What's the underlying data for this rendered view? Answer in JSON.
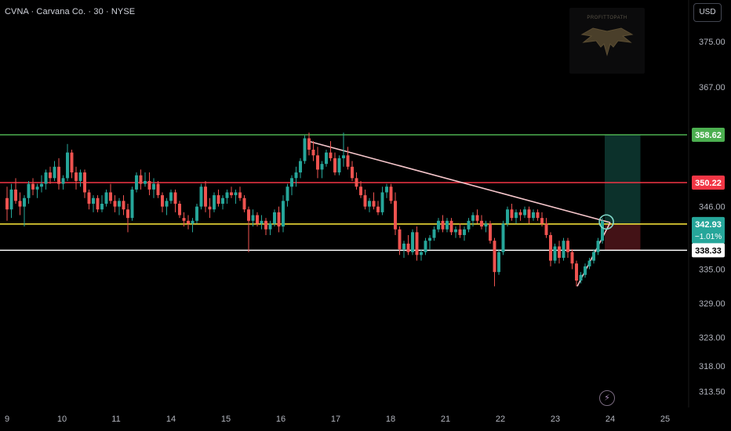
{
  "header": {
    "title": "CVNA · Carvana Co. · 30 · NYSE"
  },
  "currency_button": {
    "label": "USD"
  },
  "logo": {
    "text": "PROFITTOPATH"
  },
  "flash_icon": {
    "glyph": "⚡"
  },
  "colors": {
    "background": "#000000",
    "up": "#26a69a",
    "down": "#ef5350",
    "green_line": "#4caf50",
    "red_line": "#f23645",
    "yellow_line": "#ffeb3b",
    "white_line": "#ffffff",
    "trendline": "#f5c6cb"
  },
  "chart_data": {
    "type": "candlestick",
    "symbol": "CVNA",
    "interval": "30",
    "exchange": "NYSE",
    "y_axis": {
      "ticks": [
        "375.00",
        "367.00",
        "346.00",
        "335.00",
        "329.00",
        "323.00",
        "318.00",
        "313.50"
      ],
      "range": [
        310,
        379
      ]
    },
    "x_axis": {
      "ticks": [
        "9",
        "10",
        "11",
        "14",
        "15",
        "16",
        "17",
        "18",
        "21",
        "22",
        "23",
        "24",
        "25"
      ]
    },
    "horizontal_levels": [
      {
        "value": 358.62,
        "label": "358.62",
        "color": "#4caf50"
      },
      {
        "value": 350.22,
        "label": "350.22",
        "color": "#f23645"
      },
      {
        "value": 342.93,
        "label": "342.93",
        "sublabel": "−1.01%",
        "color": "#ffeb3b"
      },
      {
        "value": 338.33,
        "label": "338.33",
        "color": "#ffffff"
      }
    ],
    "trendlines": [
      {
        "from": [
          16.5,
          357.5
        ],
        "to": [
          24.0,
          343.2
        ]
      },
      {
        "from": [
          23.4,
          332.0
        ],
        "to": [
          24.0,
          343.2
        ]
      }
    ],
    "position_tool": {
      "entry": 342.93,
      "target": 358.62,
      "stop": 338.33,
      "x_start": 23.9,
      "x_end": 24.55
    },
    "highlight_circle": {
      "x": 23.93,
      "y": 343.3
    },
    "candles": [
      [
        347.5,
        349.5,
        343.5,
        345.5
      ],
      [
        345.5,
        350.0,
        344.0,
        349.0
      ],
      [
        349.0,
        351.0,
        346.5,
        347.0
      ],
      [
        347.0,
        348.5,
        344.5,
        346.0
      ],
      [
        346.0,
        348.0,
        342.5,
        347.5
      ],
      [
        347.5,
        350.5,
        346.5,
        350.0
      ],
      [
        350.0,
        351.0,
        348.0,
        349.0
      ],
      [
        349.0,
        350.0,
        347.5,
        349.5
      ],
      [
        349.5,
        351.5,
        348.5,
        350.0
      ],
      [
        350.0,
        352.5,
        349.0,
        352.0
      ],
      [
        352.0,
        353.0,
        350.0,
        351.0
      ],
      [
        351.0,
        354.0,
        350.5,
        353.0
      ],
      [
        353.0,
        354.5,
        349.0,
        350.0
      ],
      [
        350.0,
        351.5,
        349.0,
        351.0
      ],
      [
        351.0,
        357.0,
        350.5,
        355.5
      ],
      [
        355.5,
        356.0,
        351.0,
        352.0
      ],
      [
        352.0,
        353.0,
        349.0,
        350.5
      ],
      [
        350.5,
        352.5,
        349.5,
        352.0
      ],
      [
        352.0,
        352.5,
        347.5,
        348.5
      ],
      [
        348.5,
        349.0,
        345.5,
        346.5
      ],
      [
        346.5,
        348.0,
        345.0,
        347.5
      ],
      [
        347.5,
        348.0,
        345.0,
        345.5
      ],
      [
        345.5,
        348.0,
        345.0,
        346.5
      ],
      [
        346.5,
        349.0,
        346.0,
        348.5
      ],
      [
        348.5,
        350.0,
        346.5,
        347.0
      ],
      [
        347.0,
        348.0,
        345.0,
        346.0
      ],
      [
        346.0,
        347.5,
        344.5,
        347.0
      ],
      [
        347.0,
        348.0,
        344.5,
        345.5
      ],
      [
        345.5,
        346.5,
        341.5,
        344.0
      ],
      [
        344.0,
        349.5,
        343.5,
        349.0
      ],
      [
        349.0,
        352.0,
        348.5,
        351.5
      ],
      [
        351.5,
        352.5,
        349.0,
        350.0
      ],
      [
        350.0,
        352.0,
        349.5,
        350.5
      ],
      [
        350.5,
        352.0,
        348.0,
        349.0
      ],
      [
        349.0,
        351.0,
        347.5,
        350.0
      ],
      [
        350.0,
        350.5,
        347.5,
        348.0
      ],
      [
        348.0,
        348.5,
        345.0,
        346.0
      ],
      [
        346.0,
        347.5,
        344.5,
        347.0
      ],
      [
        347.0,
        349.0,
        346.5,
        348.5
      ],
      [
        348.5,
        349.0,
        345.0,
        346.5
      ],
      [
        346.5,
        347.0,
        344.0,
        344.5
      ],
      [
        344.0,
        345.0,
        342.5,
        343.5
      ],
      [
        343.5,
        344.5,
        342.0,
        343.0
      ],
      [
        343.0,
        344.0,
        341.5,
        343.5
      ],
      [
        343.5,
        346.5,
        343.0,
        346.0
      ],
      [
        346.0,
        350.0,
        345.5,
        349.5
      ],
      [
        349.5,
        350.5,
        345.0,
        346.0
      ],
      [
        346.0,
        347.5,
        344.0,
        345.5
      ],
      [
        345.5,
        348.5,
        345.0,
        348.0
      ],
      [
        348.0,
        349.0,
        346.0,
        346.5
      ],
      [
        346.5,
        348.0,
        345.5,
        347.5
      ],
      [
        347.5,
        349.0,
        346.5,
        348.5
      ],
      [
        348.5,
        349.5,
        347.5,
        348.0
      ],
      [
        348.0,
        349.0,
        346.5,
        348.5
      ],
      [
        348.5,
        349.5,
        347.0,
        347.5
      ],
      [
        347.5,
        348.0,
        345.0,
        345.5
      ],
      [
        345.5,
        346.0,
        338.0,
        343.5
      ],
      [
        343.5,
        345.5,
        342.5,
        344.5
      ],
      [
        344.5,
        345.0,
        342.5,
        343.0
      ],
      [
        343.0,
        344.5,
        342.0,
        343.5
      ],
      [
        343.5,
        344.0,
        341.0,
        342.0
      ],
      [
        342.0,
        343.5,
        341.0,
        343.0
      ],
      [
        343.0,
        345.5,
        342.5,
        345.0
      ],
      [
        345.0,
        346.0,
        341.5,
        342.5
      ],
      [
        342.5,
        348.0,
        341.5,
        347.0
      ],
      [
        347.0,
        350.0,
        346.0,
        349.5
      ],
      [
        349.5,
        351.5,
        348.0,
        351.0
      ],
      [
        351.0,
        353.0,
        349.5,
        352.0
      ],
      [
        352.0,
        354.5,
        351.0,
        354.0
      ],
      [
        354.0,
        358.5,
        353.5,
        358.0
      ],
      [
        358.0,
        359.0,
        355.0,
        356.0
      ],
      [
        356.0,
        357.5,
        354.0,
        355.0
      ],
      [
        355.0,
        356.5,
        351.0,
        352.5
      ],
      [
        352.5,
        354.0,
        351.0,
        353.5
      ],
      [
        353.5,
        356.0,
        353.0,
        355.5
      ],
      [
        355.5,
        357.5,
        354.0,
        354.5
      ],
      [
        354.5,
        355.5,
        351.5,
        352.0
      ],
      [
        352.0,
        355.0,
        351.5,
        354.5
      ],
      [
        354.5,
        359.0,
        353.0,
        355.0
      ],
      [
        355.0,
        356.5,
        352.5,
        353.0
      ],
      [
        353.0,
        354.0,
        350.5,
        351.0
      ],
      [
        351.0,
        352.0,
        349.0,
        349.5
      ],
      [
        349.5,
        350.5,
        347.5,
        348.0
      ],
      [
        348.0,
        349.0,
        345.5,
        346.0
      ],
      [
        346.0,
        347.5,
        345.0,
        347.0
      ],
      [
        347.0,
        348.5,
        345.5,
        346.0
      ],
      [
        346.0,
        347.0,
        344.5,
        345.0
      ],
      [
        345.0,
        349.5,
        344.5,
        348.5
      ],
      [
        348.5,
        350.0,
        347.5,
        349.5
      ],
      [
        349.5,
        350.0,
        346.5,
        347.0
      ],
      [
        347.0,
        348.5,
        341.0,
        342.0
      ],
      [
        342.0,
        342.5,
        337.5,
        338.5
      ],
      [
        338.5,
        340.0,
        337.0,
        339.5
      ],
      [
        339.5,
        341.0,
        337.5,
        338.0
      ],
      [
        338.0,
        342.0,
        337.5,
        341.5
      ],
      [
        341.5,
        342.5,
        336.5,
        337.5
      ],
      [
        337.5,
        338.5,
        336.5,
        338.0
      ],
      [
        338.0,
        340.5,
        337.5,
        340.0
      ],
      [
        340.0,
        341.0,
        338.5,
        340.5
      ],
      [
        340.5,
        342.5,
        340.0,
        342.0
      ],
      [
        342.0,
        344.0,
        341.5,
        343.5
      ],
      [
        343.5,
        344.5,
        341.5,
        342.0
      ],
      [
        342.0,
        344.0,
        341.5,
        343.5
      ],
      [
        343.5,
        344.0,
        341.0,
        341.5
      ],
      [
        341.5,
        342.5,
        340.5,
        342.0
      ],
      [
        342.0,
        343.0,
        340.5,
        341.0
      ],
      [
        341.0,
        342.5,
        340.0,
        342.0
      ],
      [
        342.0,
        344.0,
        341.5,
        343.5
      ],
      [
        343.5,
        345.0,
        342.5,
        344.5
      ],
      [
        344.5,
        345.5,
        343.0,
        343.5
      ],
      [
        343.5,
        344.5,
        342.0,
        342.5
      ],
      [
        342.5,
        343.5,
        341.5,
        343.0
      ],
      [
        343.0,
        343.5,
        339.5,
        340.0
      ],
      [
        340.0,
        340.5,
        332.0,
        334.5
      ],
      [
        334.5,
        338.5,
        334.0,
        338.0
      ],
      [
        338.0,
        343.5,
        337.5,
        343.0
      ],
      [
        343.0,
        346.0,
        342.5,
        345.5
      ],
      [
        345.5,
        346.5,
        343.5,
        344.0
      ],
      [
        344.0,
        345.5,
        343.0,
        345.0
      ],
      [
        345.0,
        345.5,
        343.5,
        344.5
      ],
      [
        344.5,
        346.0,
        344.0,
        345.5
      ],
      [
        345.5,
        346.0,
        343.0,
        344.0
      ],
      [
        344.0,
        345.5,
        343.5,
        345.0
      ],
      [
        345.0,
        345.5,
        343.5,
        344.0
      ],
      [
        344.0,
        345.0,
        342.5,
        343.0
      ],
      [
        343.0,
        344.0,
        340.5,
        341.0
      ],
      [
        341.0,
        341.5,
        335.5,
        336.5
      ],
      [
        336.5,
        339.5,
        336.0,
        339.0
      ],
      [
        339.0,
        340.0,
        336.0,
        337.0
      ],
      [
        337.0,
        340.5,
        336.5,
        340.0
      ],
      [
        340.0,
        340.5,
        337.0,
        338.0
      ],
      [
        338.0,
        338.5,
        335.0,
        336.0
      ],
      [
        336.0,
        336.5,
        332.0,
        333.0
      ],
      [
        333.0,
        334.5,
        332.5,
        334.0
      ],
      [
        334.0,
        336.0,
        333.5,
        335.5
      ],
      [
        335.5,
        337.0,
        335.0,
        336.5
      ],
      [
        336.5,
        338.5,
        336.0,
        338.0
      ],
      [
        338.0,
        340.5,
        337.5,
        340.0
      ],
      [
        340.0,
        344.0,
        339.5,
        343.5
      ]
    ]
  }
}
